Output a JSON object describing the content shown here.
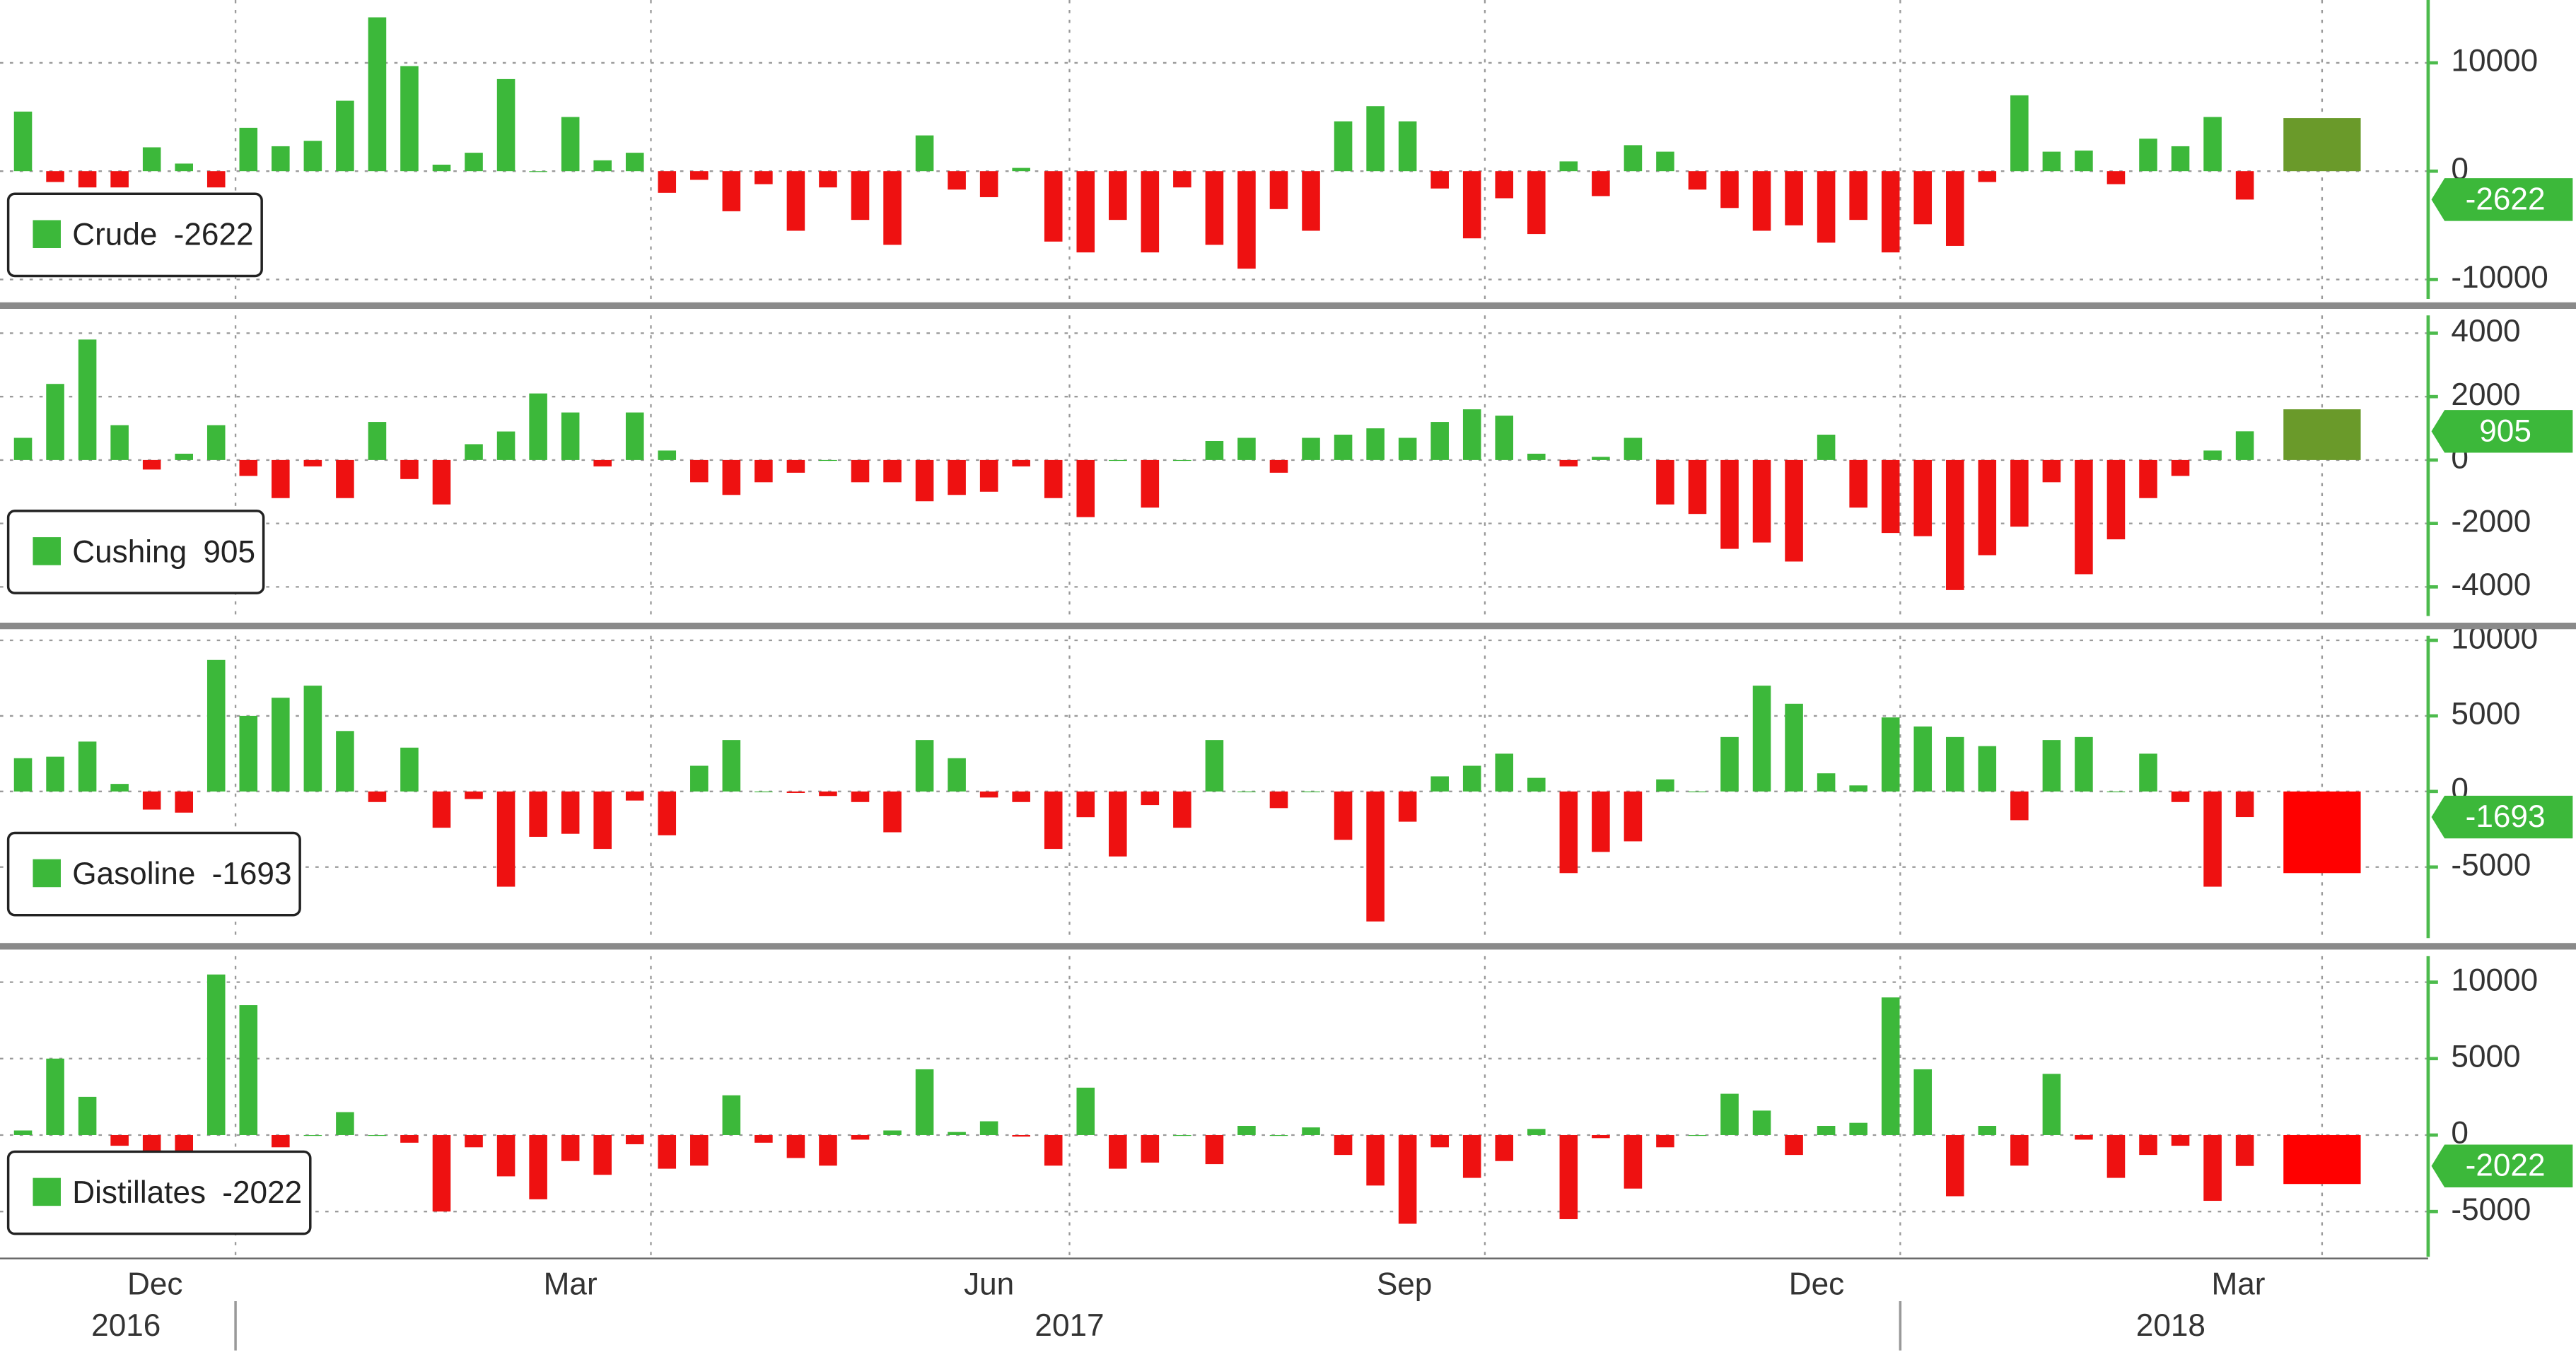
{
  "chart_data": [
    {
      "type": "bar",
      "ylim": [
        -11800,
        15800
      ],
      "yticks": [
        10000,
        0,
        -10000
      ],
      "grid": true,
      "last_bar": {
        "value": 4900,
        "x": [
          70.2,
          72.6
        ],
        "color": "#6a9a2a"
      },
      "series": [
        {
          "name": "Crude",
          "color": "#3cb83a",
          "negative_color": "#ee1111",
          "values": [
            5500,
            -1000,
            -1500,
            -1500,
            2200,
            700,
            -1500,
            4000,
            2300,
            2800,
            6500,
            14200,
            9700,
            600,
            1700,
            8500,
            0,
            5000,
            1000,
            1700,
            -2000,
            -800,
            -3700,
            -1200,
            -5500,
            -1500,
            -4500,
            -6800,
            3300,
            -1700,
            -2400,
            300,
            -6500,
            -7500,
            -4500,
            -7500,
            -1500,
            -6800,
            -9000,
            -3500,
            -5500,
            4600,
            6000,
            4600,
            -1600,
            -6200,
            -2500,
            -5800,
            900,
            -2300,
            2400,
            1800,
            -1700,
            -3400,
            -5500,
            -5000,
            -6600,
            -4500,
            -7500,
            -4900,
            -6900,
            -1000,
            7000,
            1800,
            1900,
            -1200,
            3000,
            2300,
            5000,
            -2622
          ]
        }
      ]
    },
    {
      "type": "bar",
      "ylim": [
        -4920,
        4560
      ],
      "yticks": [
        4000,
        2000,
        0,
        -2000,
        -4000
      ],
      "grid": true,
      "last_bar": {
        "value": 1600,
        "x": [
          70.2,
          72.6
        ],
        "color": "#6a9a2a"
      },
      "series": [
        {
          "name": "Cushing",
          "color": "#3cb83a",
          "negative_color": "#ee1111",
          "values": [
            700,
            2400,
            3800,
            1100,
            -300,
            200,
            1100,
            -500,
            -1200,
            -200,
            -1200,
            1200,
            -600,
            -1400,
            500,
            900,
            2100,
            1500,
            -200,
            1500,
            300,
            -700,
            -1100,
            -700,
            -400,
            0,
            -700,
            -700,
            -1300,
            -1100,
            -1000,
            -200,
            -1200,
            -1800,
            0,
            -1500,
            0,
            600,
            700,
            -400,
            700,
            800,
            1000,
            700,
            1200,
            1600,
            1400,
            200,
            -200,
            100,
            700,
            -1400,
            -1700,
            -2800,
            -2600,
            -3200,
            800,
            -1500,
            -2300,
            -2400,
            -4100,
            -3000,
            -2100,
            -700,
            -3600,
            -2500,
            -1200,
            -500,
            300,
            905
          ]
        }
      ]
    },
    {
      "type": "bar",
      "ylim": [
        -9700,
        10300
      ],
      "yticks": [
        10000,
        5000,
        0,
        -5000
      ],
      "grid": true,
      "last_bar": {
        "value": -5400,
        "x": [
          70.2,
          72.6
        ],
        "color": "#ff0000"
      },
      "series": [
        {
          "name": "Gasoline",
          "color": "#3cb83a",
          "negative_color": "#ee1111",
          "values": [
            2200,
            2300,
            3300,
            500,
            -1200,
            -1400,
            8700,
            5000,
            6200,
            7000,
            4000,
            -700,
            2900,
            -2400,
            -500,
            -6300,
            -3000,
            -2800,
            -3800,
            -600,
            -2900,
            1700,
            3400,
            0,
            -100,
            -300,
            -700,
            -2700,
            3400,
            2200,
            -400,
            -700,
            -3800,
            -1700,
            -4300,
            -900,
            -2400,
            3400,
            0,
            -1100,
            0,
            -3200,
            -8600,
            -2000,
            1000,
            1700,
            2500,
            900,
            -5400,
            -4000,
            -3300,
            800,
            0,
            3600,
            7000,
            5800,
            1200,
            400,
            4900,
            4300,
            3600,
            3000,
            -1900,
            3400,
            3600,
            0,
            2500,
            -700,
            -6300,
            -1693
          ]
        }
      ]
    },
    {
      "type": "bar",
      "ylim": [
        -7960,
        11700
      ],
      "yticks": [
        10000,
        5000,
        0,
        -5000
      ],
      "grid": true,
      "last_bar": {
        "value": -3200,
        "x": [
          70.2,
          72.6
        ],
        "color": "#ff0000"
      },
      "series": [
        {
          "name": "Distillates",
          "color": "#3cb83a",
          "negative_color": "#ee1111",
          "values": [
            300,
            5000,
            2500,
            -700,
            -2000,
            -1900,
            10500,
            8500,
            -800,
            0,
            1500,
            0,
            -500,
            -5000,
            -800,
            -2700,
            -4200,
            -1700,
            -2600,
            -600,
            -2200,
            -2000,
            2600,
            -500,
            -1500,
            -2000,
            -300,
            300,
            4300,
            200,
            900,
            -100,
            -2000,
            3100,
            -2200,
            -1800,
            0,
            -1900,
            600,
            0,
            500,
            -1300,
            -3300,
            -5800,
            -800,
            -2800,
            -1700,
            400,
            -5500,
            -200,
            -3500,
            -800,
            0,
            2700,
            1600,
            -1300,
            600,
            800,
            9000,
            4300,
            -4000,
            600,
            -2000,
            4000,
            -300,
            -2800,
            -1300,
            -700,
            -4300,
            -2022
          ]
        }
      ],
      "xticks": [
        {
          "value": 4.1,
          "label": "Dec"
        },
        {
          "value": 17,
          "label": "Mar"
        },
        {
          "value": 30,
          "label": "Jun"
        },
        {
          "value": 42.9,
          "label": "Sep"
        },
        {
          "value": 55.7,
          "label": "Dec"
        },
        {
          "value": 68.8,
          "label": "Mar"
        }
      ],
      "xgrid": [
        6.6,
        19.5,
        32.5,
        45.4,
        58.3,
        71.4
      ],
      "years": [
        {
          "value": 3.2,
          "label": "2016"
        },
        {
          "value": 32.5,
          "label": "2017"
        },
        {
          "value": 66.7,
          "label": "2018"
        }
      ],
      "year_breaks": [
        6.6,
        58.3
      ]
    }
  ]
}
